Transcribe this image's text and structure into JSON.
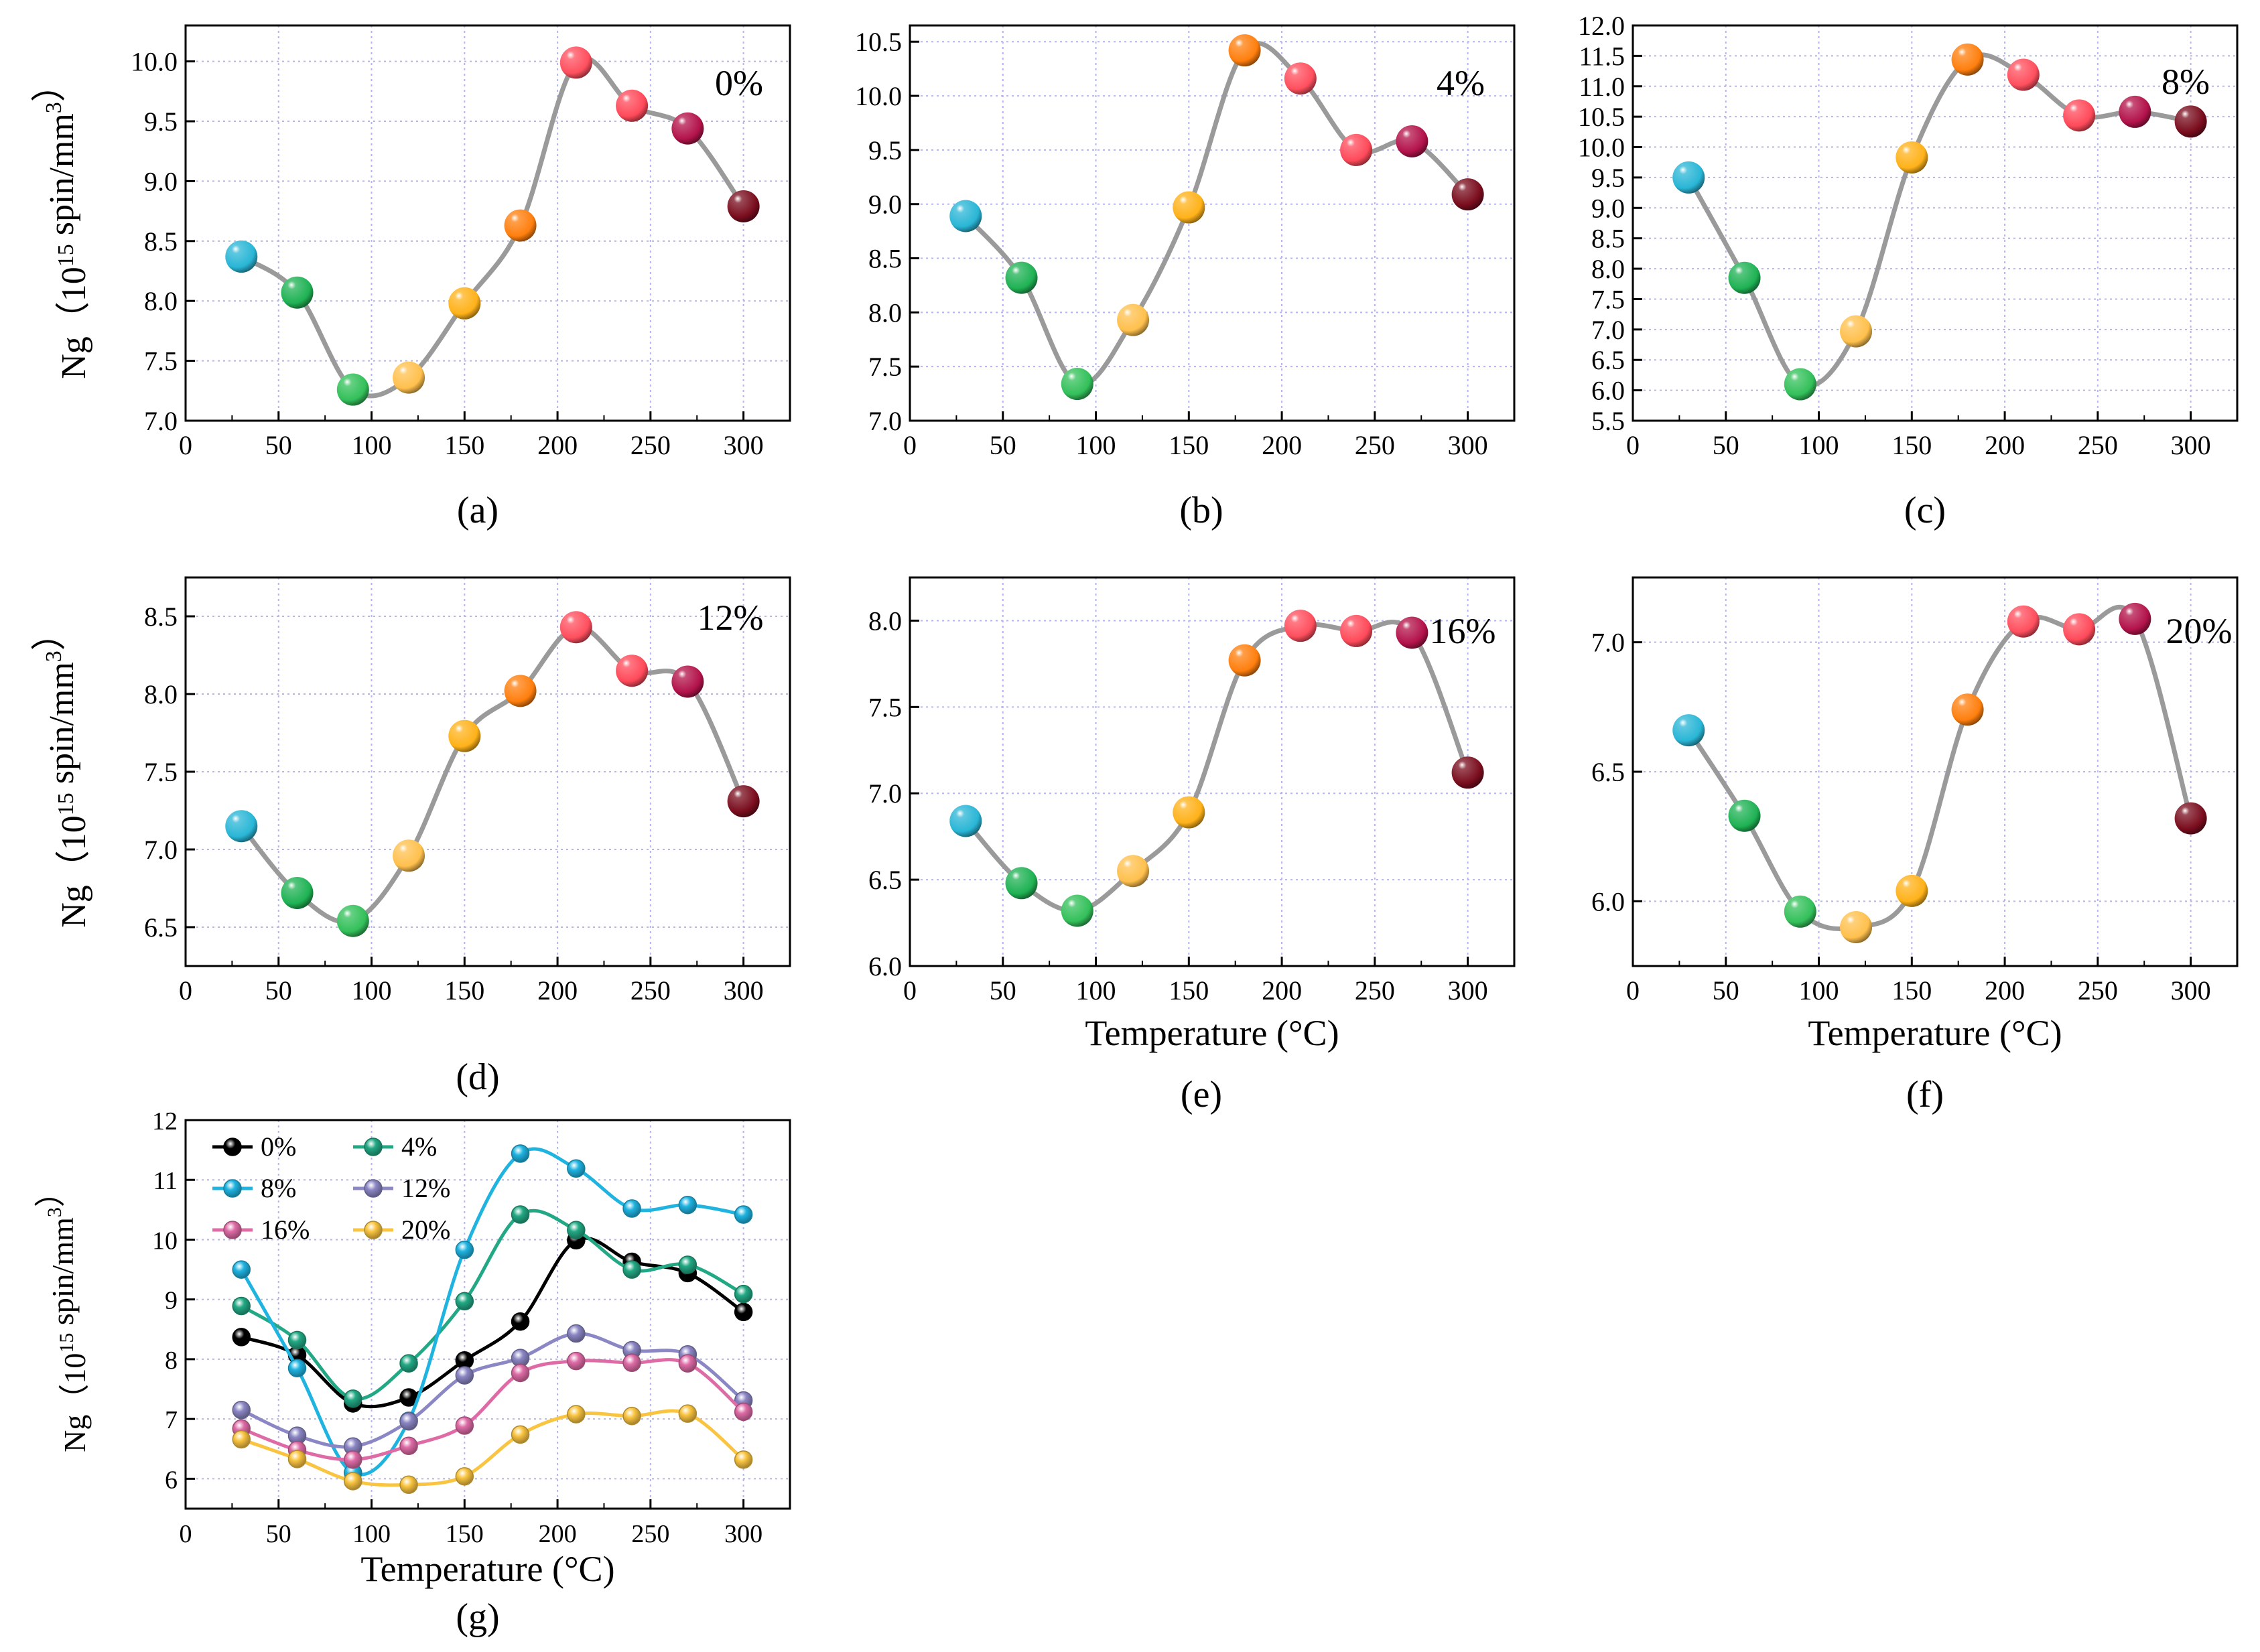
{
  "figure": {
    "ylabel_prefix": "Ng（10",
    "ylabel_exp": "15",
    "ylabel_unit": " spin/mm",
    "ylabel_unit_exp": "3",
    "ylabel_close": "）",
    "xlabel": "Temperature (°C)"
  },
  "chart_data": [
    {
      "id": "a",
      "type": "line",
      "panel_label": "(a)",
      "annotation": "0%",
      "show_xlabel": false,
      "x": [
        30,
        60,
        90,
        120,
        150,
        180,
        210,
        240,
        270,
        300
      ],
      "values": [
        8.37,
        8.07,
        7.26,
        7.36,
        7.98,
        8.63,
        9.99,
        9.63,
        9.44,
        8.79
      ],
      "xlim": [
        0,
        325
      ],
      "ylim": [
        7.0,
        10.3
      ],
      "xticks": [
        0,
        50,
        100,
        150,
        200,
        250,
        300
      ],
      "yticks": [
        7.0,
        7.5,
        8.0,
        8.5,
        9.0,
        9.5,
        10.0
      ],
      "ytick_labels": [
        "7.0",
        "7.5",
        "8.0",
        "8.5",
        "9.0",
        "9.5",
        "10.0"
      ],
      "grid": true
    },
    {
      "id": "b",
      "type": "line",
      "panel_label": "(b)",
      "annotation": "4%",
      "show_xlabel": false,
      "x": [
        30,
        60,
        90,
        120,
        150,
        180,
        210,
        240,
        270,
        300
      ],
      "values": [
        8.89,
        8.32,
        7.34,
        7.93,
        8.97,
        10.42,
        10.16,
        9.5,
        9.58,
        9.09
      ],
      "xlim": [
        0,
        325
      ],
      "ylim": [
        7.0,
        10.65
      ],
      "xticks": [
        0,
        50,
        100,
        150,
        200,
        250,
        300
      ],
      "yticks": [
        7.0,
        7.5,
        8.0,
        8.5,
        9.0,
        9.5,
        10.0,
        10.5
      ],
      "ytick_labels": [
        "7.0",
        "7.5",
        "8.0",
        "8.5",
        "9.0",
        "9.5",
        "10.0",
        "10.5"
      ],
      "grid": true
    },
    {
      "id": "c",
      "type": "line",
      "panel_label": "(c)",
      "annotation": "8%",
      "show_xlabel": false,
      "x": [
        30,
        60,
        90,
        120,
        150,
        180,
        210,
        240,
        270,
        300
      ],
      "values": [
        9.5,
        7.85,
        6.1,
        6.97,
        9.83,
        11.44,
        11.19,
        10.52,
        10.58,
        10.42
      ],
      "xlim": [
        0,
        325
      ],
      "ylim": [
        5.5,
        12.0
      ],
      "xticks": [
        0,
        50,
        100,
        150,
        200,
        250,
        300
      ],
      "yticks": [
        5.5,
        6.0,
        6.5,
        7.0,
        7.5,
        8.0,
        8.5,
        9.0,
        9.5,
        10.0,
        10.5,
        11.0,
        11.5,
        12.0
      ],
      "ytick_labels": [
        "5.5",
        "6.0",
        "6.5",
        "7.0",
        "7.5",
        "8.0",
        "8.5",
        "9.0",
        "9.5",
        "10.0",
        "10.5",
        "11.0",
        "11.5",
        "12.0"
      ],
      "grid": true
    },
    {
      "id": "d",
      "type": "line",
      "panel_label": "(d)",
      "annotation": "12%",
      "show_xlabel": false,
      "x": [
        30,
        60,
        90,
        120,
        150,
        180,
        210,
        240,
        270,
        300
      ],
      "values": [
        7.15,
        6.72,
        6.54,
        6.96,
        7.73,
        8.02,
        8.43,
        8.15,
        8.08,
        7.31
      ],
      "xlim": [
        0,
        325
      ],
      "ylim": [
        6.25,
        8.75
      ],
      "xticks": [
        0,
        50,
        100,
        150,
        200,
        250,
        300
      ],
      "yticks": [
        6.5,
        7.0,
        7.5,
        8.0,
        8.5
      ],
      "ytick_labels": [
        "6.5",
        "7.0",
        "7.5",
        "8.0",
        "8.5"
      ],
      "grid": true
    },
    {
      "id": "e",
      "type": "line",
      "panel_label": "(e)",
      "annotation": "16%",
      "show_xlabel": true,
      "x": [
        30,
        60,
        90,
        120,
        150,
        180,
        210,
        240,
        270,
        300
      ],
      "values": [
        6.84,
        6.48,
        6.32,
        6.55,
        6.89,
        7.77,
        7.97,
        7.94,
        7.93,
        7.12
      ],
      "xlim": [
        0,
        325
      ],
      "ylim": [
        6.0,
        8.25
      ],
      "xticks": [
        0,
        50,
        100,
        150,
        200,
        250,
        300
      ],
      "yticks": [
        6.0,
        6.5,
        7.0,
        7.5,
        8.0
      ],
      "ytick_labels": [
        "6.0",
        "6.5",
        "7.0",
        "7.5",
        "8.0"
      ],
      "grid": true
    },
    {
      "id": "f",
      "type": "line",
      "panel_label": "(f)",
      "annotation": "20%",
      "show_xlabel": true,
      "x": [
        30,
        60,
        90,
        120,
        150,
        180,
        210,
        240,
        270,
        300
      ],
      "values": [
        6.66,
        6.33,
        5.96,
        5.9,
        6.04,
        6.74,
        7.08,
        7.05,
        7.09,
        6.32
      ],
      "xlim": [
        0,
        325
      ],
      "ylim": [
        5.75,
        7.25
      ],
      "xticks": [
        0,
        50,
        100,
        150,
        200,
        250,
        300
      ],
      "yticks": [
        6.0,
        6.5,
        7.0
      ],
      "ytick_labels": [
        "6.0",
        "6.5",
        "7.0"
      ],
      "grid": true
    },
    {
      "id": "g",
      "type": "line",
      "panel_label": "(g)",
      "show_xlabel": true,
      "legend_position": "top-left",
      "x": [
        30,
        60,
        90,
        120,
        150,
        180,
        210,
        240,
        270,
        300
      ],
      "series": [
        {
          "name": "0%",
          "color": "#000000",
          "values": [
            8.37,
            8.07,
            7.26,
            7.36,
            7.98,
            8.63,
            9.99,
            9.63,
            9.44,
            8.79
          ]
        },
        {
          "name": "4%",
          "color": "#22a884",
          "values": [
            8.89,
            8.32,
            7.34,
            7.93,
            8.97,
            10.42,
            10.16,
            9.5,
            9.58,
            9.09
          ]
        },
        {
          "name": "8%",
          "color": "#1fb3e0",
          "values": [
            9.5,
            7.85,
            6.1,
            6.97,
            9.83,
            11.44,
            11.19,
            10.52,
            10.58,
            10.42
          ]
        },
        {
          "name": "12%",
          "color": "#8b86c4",
          "values": [
            7.15,
            6.72,
            6.54,
            6.96,
            7.73,
            8.02,
            8.43,
            8.15,
            8.08,
            7.31
          ]
        },
        {
          "name": "16%",
          "color": "#de6ba6",
          "values": [
            6.84,
            6.48,
            6.32,
            6.55,
            6.89,
            7.77,
            7.97,
            7.94,
            7.93,
            7.12
          ]
        },
        {
          "name": "20%",
          "color": "#f9c440",
          "values": [
            6.66,
            6.33,
            5.96,
            5.9,
            6.04,
            6.74,
            7.08,
            7.05,
            7.09,
            6.32
          ]
        }
      ],
      "xlim": [
        0,
        325
      ],
      "ylim": [
        5.5,
        12.0
      ],
      "xticks": [
        0,
        50,
        100,
        150,
        200,
        250,
        300
      ],
      "yticks": [
        6,
        7,
        8,
        9,
        10,
        11,
        12
      ],
      "ytick_labels": [
        "6",
        "7",
        "8",
        "9",
        "10",
        "11",
        "12"
      ],
      "grid": true
    }
  ],
  "marker_colors": [
    "#29b6d6",
    "#1fb254",
    "#33c05a",
    "#ffc04d",
    "#ffb21a",
    "#ff7f0e",
    "#ff4f5e",
    "#ff4a5a",
    "#b3134a",
    "#7a0d1e"
  ],
  "curve_color": "#9a9a9a",
  "grid_color": "#b5b5e6"
}
